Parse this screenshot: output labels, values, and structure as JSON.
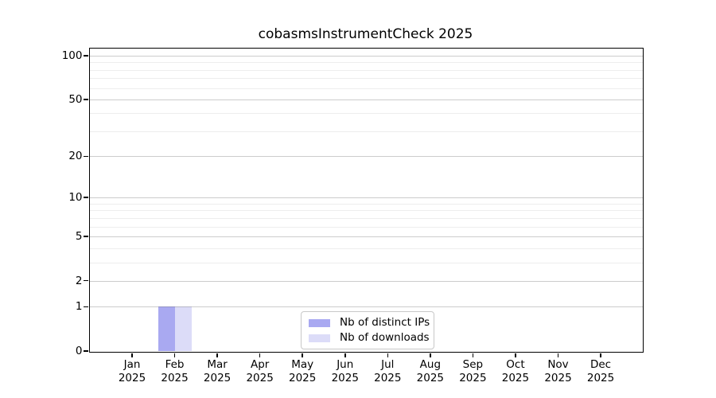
{
  "colors": {
    "background": "#ffffff",
    "axis": "#000000",
    "text": "#000000",
    "major_grid": "rgba(110,110,110,0.35)",
    "minor_grid": "rgba(110,110,110,0.12)",
    "legend_border": "#c8c8c8"
  },
  "chart_data": {
    "type": "bar",
    "title": "cobasmsInstrumentCheck 2025",
    "xlabel": "",
    "ylabel": "",
    "grid": "horizontal-only",
    "x_categories": [
      {
        "month": "Jan",
        "year": "2025"
      },
      {
        "month": "Feb",
        "year": "2025"
      },
      {
        "month": "Mar",
        "year": "2025"
      },
      {
        "month": "Apr",
        "year": "2025"
      },
      {
        "month": "May",
        "year": "2025"
      },
      {
        "month": "Jun",
        "year": "2025"
      },
      {
        "month": "Jul",
        "year": "2025"
      },
      {
        "month": "Aug",
        "year": "2025"
      },
      {
        "month": "Sep",
        "year": "2025"
      },
      {
        "month": "Oct",
        "year": "2025"
      },
      {
        "month": "Nov",
        "year": "2025"
      },
      {
        "month": "Dec",
        "year": "2025"
      }
    ],
    "series": [
      {
        "name": "Nb of distinct IPs",
        "color": "#a9a9f1",
        "values": [
          0,
          1,
          0,
          0,
          0,
          0,
          0,
          0,
          0,
          0,
          0,
          0
        ]
      },
      {
        "name": "Nb of downloads",
        "color": "#dcdcf8",
        "values": [
          0,
          1,
          0,
          0,
          0,
          0,
          0,
          0,
          0,
          0,
          0,
          0
        ]
      }
    ],
    "y_axis": {
      "scale": "log1p",
      "major_ticks": [
        0,
        1,
        2,
        5,
        10,
        20,
        50,
        100
      ],
      "minor_gridlines": [
        3,
        4,
        6,
        7,
        8,
        9,
        30,
        40,
        60,
        70,
        80,
        90
      ],
      "ylim": [
        0,
        110
      ]
    },
    "legend_position": "bottom-center"
  }
}
